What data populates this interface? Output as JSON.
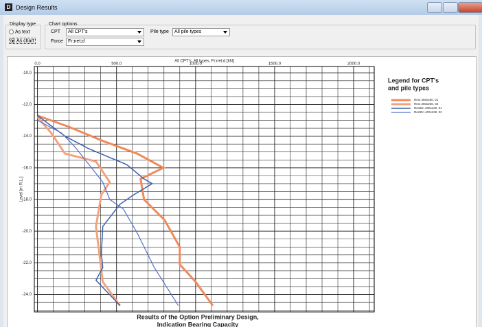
{
  "window": {
    "icon": "D",
    "title": "Design Results"
  },
  "display_type": {
    "label": "Display type",
    "options": [
      "As text",
      "As chart"
    ],
    "selected": 1
  },
  "chart_options": {
    "label": "Chart options",
    "cpt_label": "CPT",
    "cpt_value": "All CPT's",
    "pile_type_label": "Pile type",
    "pile_type_value": "All pile types",
    "force_label": "Force",
    "force_value": "Fr;net;d"
  },
  "chart_data": {
    "type": "line",
    "title": "All CPT's, All types, Fr;net;d [kN]",
    "ylabel": "Level [m R.L.]",
    "footer": [
      "Results of the Option Preliminary Design,",
      "Indication Bearing Capacity"
    ],
    "legend_title": [
      "Legend for CPT's",
      "and pile types"
    ],
    "xlim": [
      -20,
      2130
    ],
    "xticks": [
      {
        "value": 0,
        "label": "0.0"
      },
      {
        "value": 500,
        "label": "500.0"
      },
      {
        "value": 1000,
        "label": "1000.0"
      },
      {
        "value": 1500,
        "label": "1500.0"
      },
      {
        "value": 2000,
        "label": "2000.0"
      }
    ],
    "ylim": [
      -9.6,
      -25.1
    ],
    "yticks": [
      {
        "value": -10,
        "label": "-10.0"
      },
      {
        "value": -12,
        "label": "-12.0"
      },
      {
        "value": -14,
        "label": "-14.0"
      },
      {
        "value": -16,
        "label": "-16.0"
      },
      {
        "value": -18,
        "label": "-18.0"
      },
      {
        "value": -20,
        "label": "-20.0"
      },
      {
        "value": -22,
        "label": "-22.0"
      },
      {
        "value": -24,
        "label": "-24.0"
      }
    ],
    "grid": true,
    "series": [
      {
        "name": "Rect 250x250, 01",
        "color": "#f08a5a",
        "width": 3,
        "values": [
          0,
          196,
          413,
          630,
          796,
          652,
          674,
          804,
          900,
          900,
          1000,
          1109
        ],
        "levels": [
          -12.7,
          -13.4,
          -14.3,
          -15.1,
          -16.0,
          -16.7,
          -18.0,
          -19.3,
          -21.0,
          -22.1,
          -23.2,
          -24.7
        ]
      },
      {
        "name": "Rect 250x250, 02",
        "color": "#f4a27c",
        "width": 3,
        "values": [
          0,
          87,
          174,
          370,
          457,
          404,
          370,
          391,
          413,
          522
        ],
        "levels": [
          -12.8,
          -13.8,
          -15.1,
          -15.6,
          -16.9,
          -17.7,
          -19.7,
          -21.4,
          -23.2,
          -24.7
        ]
      },
      {
        "name": "RectEn 400x420, 01",
        "color": "#3a5fb0",
        "width": 1.5,
        "values": [
          0,
          174,
          326,
          565,
          674,
          726,
          609,
          522,
          413,
          404,
          413,
          370,
          522
        ],
        "levels": [
          -12.7,
          -14.0,
          -14.8,
          -15.8,
          -16.7,
          -17.0,
          -17.7,
          -18.3,
          -19.7,
          -21.4,
          -22.3,
          -23.1,
          -24.7
        ]
      },
      {
        "name": "RectEn 400x420, 02",
        "color": "#5470c8",
        "width": 1.2,
        "values": [
          0,
          152,
          239,
          413,
          457,
          543,
          630,
          739,
          891
        ],
        "levels": [
          -13.0,
          -13.8,
          -14.7,
          -16.9,
          -18.0,
          -18.6,
          -20.1,
          -22.3,
          -24.7
        ]
      }
    ]
  }
}
